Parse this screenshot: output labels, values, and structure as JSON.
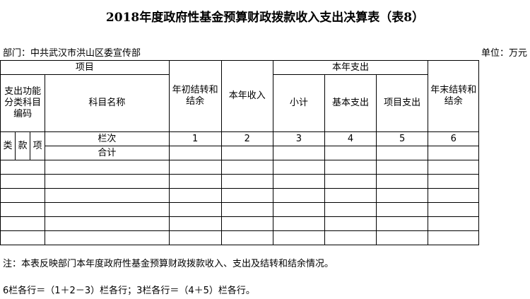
{
  "title": "2018年度政府性基金预算财政拨款收入支出决算表（表8）",
  "department": "部门：中共武汉市洪山区委宣传部",
  "unit": "单位：万元",
  "headers": {
    "project": "项目",
    "code": "支出功能分类科目编码",
    "name": "科目名称",
    "opening": "年初结转和结余",
    "income": "本年收入",
    "expense": "本年支出",
    "subtotal": "小计",
    "basic": "基本支出",
    "project_exp": "项目支出",
    "closing": "年末结转和结余",
    "lei": "类",
    "kuan": "款",
    "xiang": "项"
  },
  "column_row": {
    "label": "栏次",
    "numbers": [
      "1",
      "2",
      "3",
      "4",
      "5",
      "6"
    ]
  },
  "total_label": "合计",
  "notes": [
    "注：本表反映部门本年度政府性基金预算财政拨款收入、支出及结转和结余情况。",
    "6栏各行＝（1＋2－3）栏各行；3栏各行＝（4＋5）栏各行。"
  ]
}
